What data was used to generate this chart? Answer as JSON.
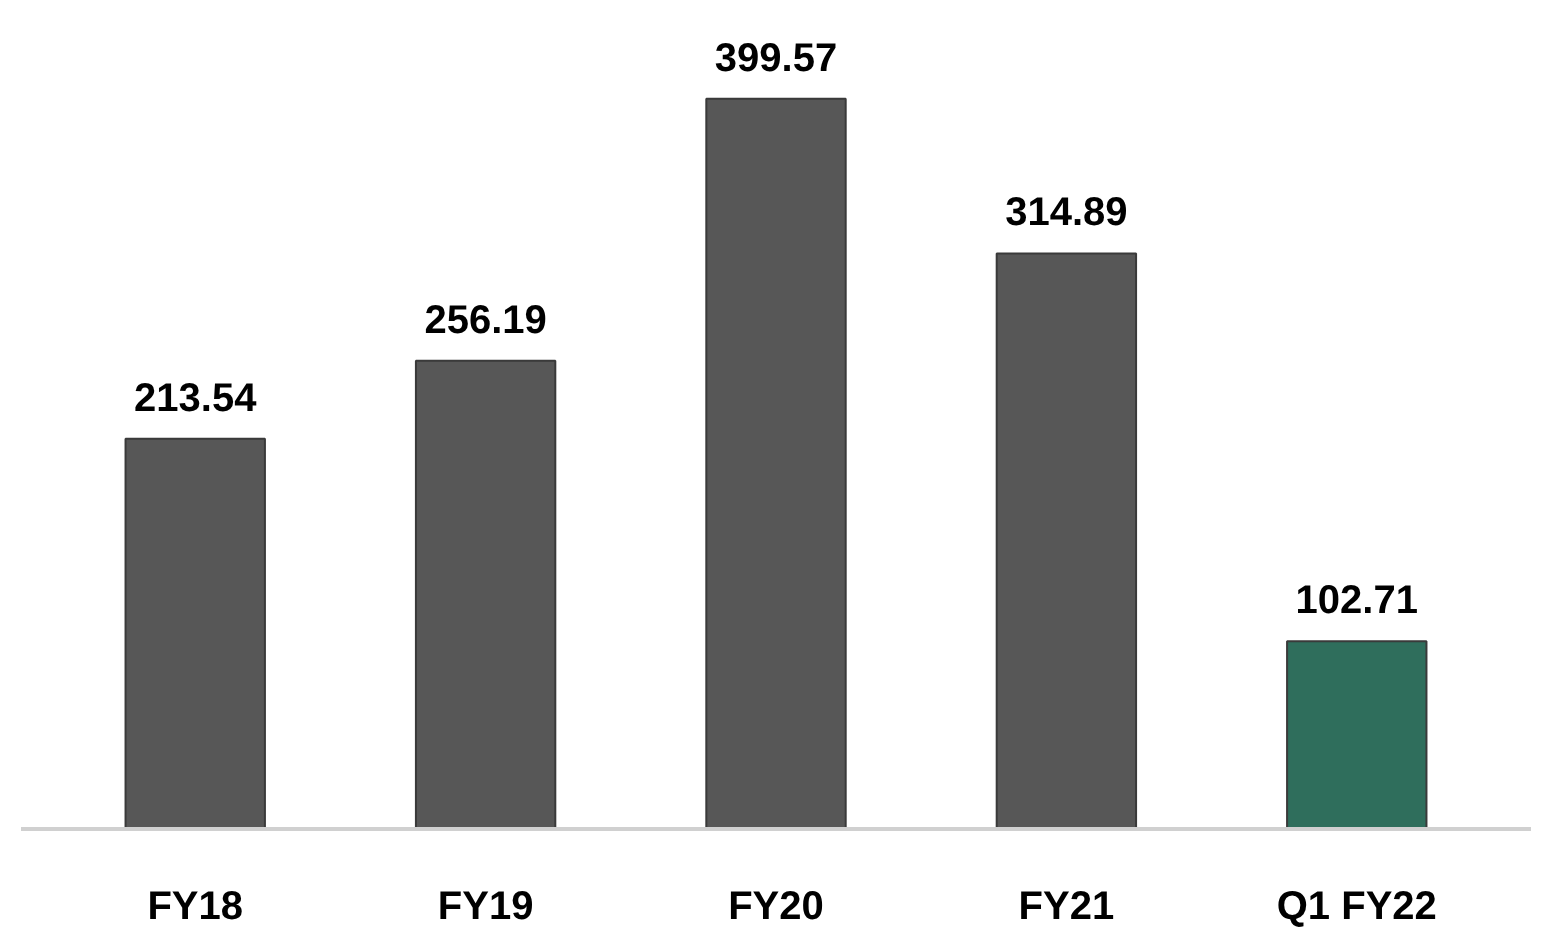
{
  "chart_data": {
    "type": "bar",
    "categories": [
      "FY18",
      "FY19",
      "FY20",
      "FY21",
      "Q1 FY22"
    ],
    "values": [
      213.54,
      256.19,
      399.57,
      314.89,
      102.71
    ],
    "colors": [
      "#575757",
      "#575757",
      "#575757",
      "#575757",
      "#2f6e5c"
    ],
    "data_labels": true
  }
}
